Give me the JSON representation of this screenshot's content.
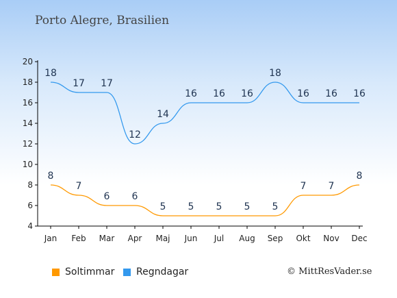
{
  "title": "Porto Alegre, Brasilien",
  "credit": "© MittResVader.se",
  "chart_data": {
    "type": "line",
    "categories": [
      "Jan",
      "Feb",
      "Mar",
      "Apr",
      "Maj",
      "Jun",
      "Jul",
      "Aug",
      "Sep",
      "Okt",
      "Nov",
      "Dec"
    ],
    "series": [
      {
        "name": "Soltimmar",
        "color": "#ff9900",
        "values": [
          8,
          7,
          6,
          6,
          5,
          5,
          5,
          5,
          5,
          7,
          7,
          8
        ]
      },
      {
        "name": "Regndagar",
        "color": "#3399ee",
        "values": [
          18,
          17,
          17,
          12,
          14,
          16,
          16,
          16,
          18,
          16,
          16,
          16
        ]
      }
    ],
    "ylim": [
      4,
      20
    ],
    "yticks": [
      4,
      6,
      8,
      10,
      12,
      14,
      16,
      18,
      20
    ],
    "xlabel": "",
    "ylabel": "",
    "grid": false,
    "legend_position": "bottom-left"
  }
}
